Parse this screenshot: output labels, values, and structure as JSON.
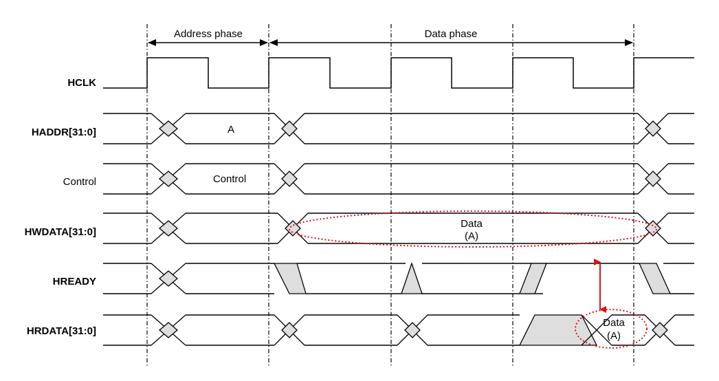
{
  "phases": [
    {
      "label": "Address phase"
    },
    {
      "label": "Data phase"
    }
  ],
  "signals": [
    {
      "name": "HCLK",
      "bold": true
    },
    {
      "name": "HADDR[31:0]",
      "bold": true,
      "value": "A"
    },
    {
      "name": "Control",
      "bold": false,
      "value": "Control"
    },
    {
      "name": "HWDATA[31:0]",
      "bold": true,
      "value_line1": "Data",
      "value_line2": "(A)"
    },
    {
      "name": "HREADY",
      "bold": true
    },
    {
      "name": "HRDATA[31:0]",
      "bold": true,
      "value_line1": "Data",
      "value_line2": "(A)"
    }
  ],
  "colors": {
    "transition_fill": "#dedede",
    "highlight": "#e01010",
    "line": "#000000"
  }
}
